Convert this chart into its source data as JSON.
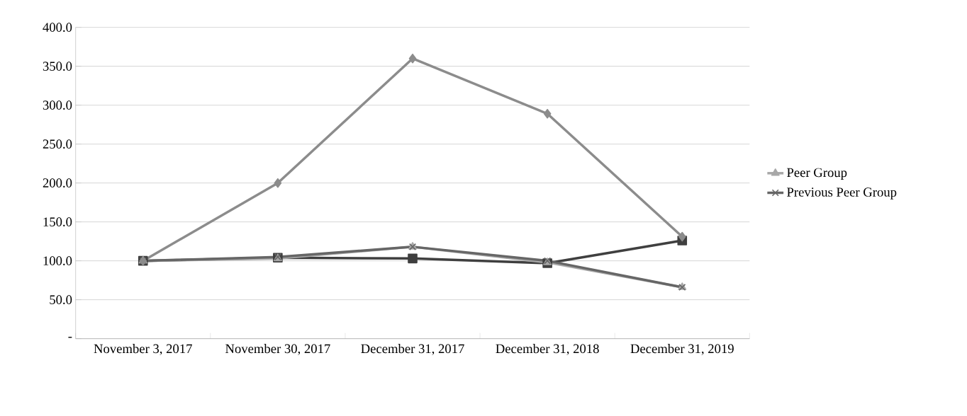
{
  "chart_data": {
    "type": "line",
    "categories": [
      "November 3, 2017",
      "November 30, 2017",
      "December 31, 2017",
      "December 31, 2018",
      "December 31, 2019"
    ],
    "series": [
      {
        "color": "#8c8c8c",
        "marker": "diamond",
        "values": [
          100,
          200,
          360,
          289,
          131
        ]
      },
      {
        "color": "#3f3f3f",
        "marker": "square",
        "values": [
          100,
          104,
          103,
          97,
          126
        ]
      },
      {
        "name": "Peer Group",
        "color": "#a8a8a8",
        "marker": "triangle",
        "values": [
          100,
          103,
          118,
          98,
          66
        ]
      },
      {
        "name": "Previous Peer Group",
        "color": "#666666",
        "marker": "cross",
        "values": [
          100,
          105,
          118,
          100,
          66
        ]
      }
    ],
    "ylim": [
      0,
      400
    ],
    "yticks": [
      {
        "value": 0,
        "label": "-"
      },
      {
        "value": 50,
        "label": "50.0"
      },
      {
        "value": 100,
        "label": "100.0"
      },
      {
        "value": 150,
        "label": "150.0"
      },
      {
        "value": 200,
        "label": "200.0"
      },
      {
        "value": 250,
        "label": "250.0"
      },
      {
        "value": 300,
        "label": "300.0"
      },
      {
        "value": 350,
        "label": "350.0"
      },
      {
        "value": 400,
        "label": "400.0"
      }
    ],
    "grid": "y",
    "legend": "right"
  }
}
